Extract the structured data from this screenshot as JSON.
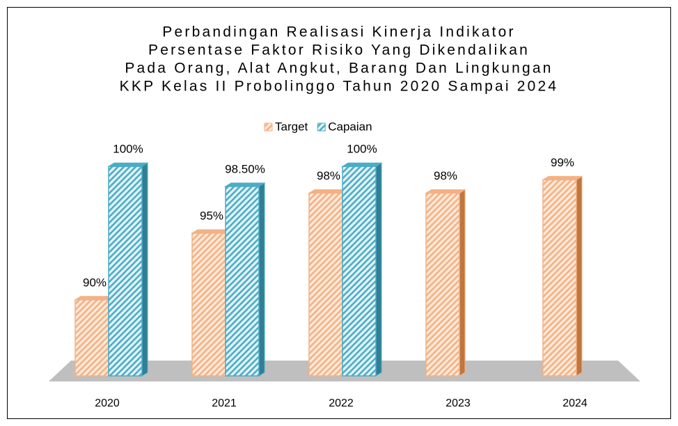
{
  "chart_data": {
    "type": "bar",
    "title": [
      "Perbandingan Realisasi Kinerja Indikator",
      "Persentase Faktor Risiko Yang Dikendalikan",
      "Pada Orang, Alat Angkut, Barang Dan Lingkungan",
      "KKP Kelas II Probolinggo Tahun 2020 Sampai 2024"
    ],
    "categories": [
      "2020",
      "2021",
      "2022",
      "2023",
      "2024"
    ],
    "series": [
      {
        "name": "Target",
        "color": "#f4b183",
        "values": [
          90,
          95,
          98,
          98,
          99
        ],
        "value_labels": [
          "90%",
          "95%",
          "98%",
          "98%",
          "99%"
        ]
      },
      {
        "name": "Capaian",
        "color": "#4bacc6",
        "values": [
          100,
          98.5,
          100,
          null,
          null
        ],
        "value_labels": [
          "100%",
          "98.50%",
          "100%",
          null,
          null
        ]
      }
    ],
    "ylim": [
      84.3,
      101
    ],
    "legend": "top"
  }
}
